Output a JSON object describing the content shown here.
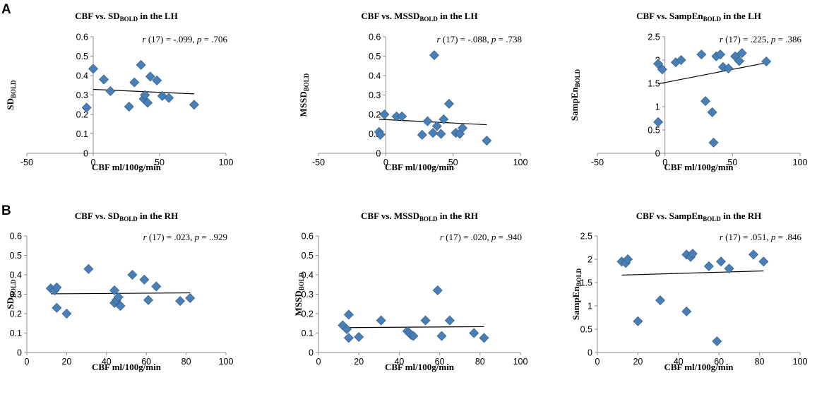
{
  "panel_labels": [
    "A",
    "B"
  ],
  "chart_data": [
    {
      "type": "scatter",
      "panel": "A",
      "row": 0,
      "col": 0,
      "title": {
        "pre": "CBF vs. SD",
        "sub": "BOLD",
        "post": " in the LH"
      },
      "xlabel": "CBF ml/100g/min",
      "ylabel": {
        "pre": "SD",
        "sub": "BOLD"
      },
      "xlim": [
        -50,
        100
      ],
      "xticks": [
        -50,
        0,
        50,
        100
      ],
      "ylim": [
        0,
        0.6
      ],
      "yticks": [
        0,
        0.1,
        0.2,
        0.3,
        0.4,
        0.5,
        0.6
      ],
      "ytick_labels": [
        "0",
        "0.1",
        "0.2",
        "0.3",
        "0.4",
        "0.5",
        "0.6"
      ],
      "stat": {
        "r": "r",
        "df": " (17) =  -.099, ",
        "p": "p",
        "val": " =  .706"
      },
      "points": [
        [
          -5,
          0.235
        ],
        [
          0,
          0.435
        ],
        [
          8,
          0.38
        ],
        [
          13,
          0.32
        ],
        [
          27,
          0.24
        ],
        [
          31,
          0.365
        ],
        [
          36,
          0.455
        ],
        [
          38,
          0.28
        ],
        [
          39,
          0.3
        ],
        [
          41,
          0.26
        ],
        [
          43,
          0.395
        ],
        [
          48,
          0.375
        ],
        [
          52,
          0.295
        ],
        [
          57,
          0.285
        ],
        [
          76,
          0.25
        ]
      ],
      "trend": [
        [
          0,
          0.329
        ],
        [
          76,
          0.306
        ]
      ]
    },
    {
      "type": "scatter",
      "panel": "A",
      "row": 0,
      "col": 1,
      "title": {
        "pre": "CBF vs. MSSD",
        "sub": "BOLD",
        "post": " in the LH"
      },
      "xlabel": "CBF ml/100g/min",
      "ylabel": {
        "pre": "MSSD",
        "sub": "BOLD"
      },
      "xlim": [
        -50,
        100
      ],
      "xticks": [
        -50,
        0,
        50,
        100
      ],
      "ylim": [
        0,
        0.6
      ],
      "yticks": [
        0,
        0.1,
        0.2,
        0.3,
        0.4,
        0.5,
        0.6
      ],
      "ytick_labels": [
        "0",
        "0.1",
        "0.2",
        "0.3",
        "0.4",
        "0.5",
        "0.6"
      ],
      "stat": {
        "r": "r",
        "df": " (17) =  -.088, ",
        "p": "p",
        "val": " =  .738"
      },
      "points": [
        [
          -5,
          0.11
        ],
        [
          -4,
          0.095
        ],
        [
          -1,
          0.2
        ],
        [
          8,
          0.19
        ],
        [
          12,
          0.19
        ],
        [
          27,
          0.095
        ],
        [
          31,
          0.165
        ],
        [
          35,
          0.105
        ],
        [
          36,
          0.505
        ],
        [
          38,
          0.14
        ],
        [
          41,
          0.1
        ],
        [
          43,
          0.175
        ],
        [
          47,
          0.255
        ],
        [
          52,
          0.105
        ],
        [
          55,
          0.1
        ],
        [
          57,
          0.13
        ],
        [
          75,
          0.065
        ]
      ],
      "trend": [
        [
          -5,
          0.175
        ],
        [
          75,
          0.147
        ]
      ]
    },
    {
      "type": "scatter",
      "panel": "A",
      "row": 0,
      "col": 2,
      "title": {
        "pre": "CBF vs. SampEn",
        "sub": "BOLD",
        "post": " in the LH"
      },
      "xlabel": "CBF ml/100g/min",
      "ylabel": {
        "pre": "SampEn",
        "sub": "BOLD"
      },
      "xlim": [
        -50,
        100
      ],
      "xticks": [
        -50,
        0,
        50,
        100
      ],
      "ylim": [
        0,
        2.5
      ],
      "yticks": [
        0,
        0.5,
        1,
        1.5,
        2,
        2.5
      ],
      "ytick_labels": [
        "0",
        "0.5",
        "1",
        "1.5",
        "2",
        "2.5"
      ],
      "stat": {
        "r": "r",
        "df": " (17) =  .225, ",
        "p": "p",
        "val": " =  .386"
      },
      "points": [
        [
          -5,
          1.92
        ],
        [
          -5,
          0.67
        ],
        [
          -2,
          1.8
        ],
        [
          8,
          1.95
        ],
        [
          12,
          2.0
        ],
        [
          27,
          2.12
        ],
        [
          30,
          1.12
        ],
        [
          35,
          0.88
        ],
        [
          36,
          0.23
        ],
        [
          38,
          2.08
        ],
        [
          41,
          2.12
        ],
        [
          43,
          1.85
        ],
        [
          47,
          1.82
        ],
        [
          52,
          2.08
        ],
        [
          55,
          1.98
        ],
        [
          57,
          2.15
        ],
        [
          75,
          1.97
        ]
      ],
      "trend": [
        [
          -5,
          1.49
        ],
        [
          75,
          1.94
        ]
      ]
    },
    {
      "type": "scatter",
      "panel": "B",
      "row": 1,
      "col": 0,
      "title": {
        "pre": "CBF vs. SD",
        "sub": "BOLD",
        "post": " in the RH"
      },
      "xlabel": "CBF ml/100g/min",
      "ylabel": {
        "pre": "SD",
        "sub": "BOLD"
      },
      "xlim": [
        0,
        100
      ],
      "xticks": [
        0,
        20,
        40,
        60,
        80,
        100
      ],
      "ylim": [
        0,
        0.6
      ],
      "yticks": [
        0,
        0.1,
        0.2,
        0.3,
        0.4,
        0.5,
        0.6
      ],
      "ytick_labels": [
        "0",
        "0.1",
        "0.2",
        "0.3",
        "0.4",
        "0.5",
        "0.6"
      ],
      "stat": {
        "r": "r",
        "df": " (17) =  .023, ",
        "p": "p",
        "val": " = ..929"
      },
      "points": [
        [
          12,
          0.33
        ],
        [
          14,
          0.32
        ],
        [
          15,
          0.335
        ],
        [
          15,
          0.23
        ],
        [
          20,
          0.2
        ],
        [
          31,
          0.43
        ],
        [
          44,
          0.255
        ],
        [
          44,
          0.32
        ],
        [
          45,
          0.27
        ],
        [
          46,
          0.285
        ],
        [
          47,
          0.24
        ],
        [
          53,
          0.4
        ],
        [
          59,
          0.375
        ],
        [
          61,
          0.27
        ],
        [
          65,
          0.34
        ],
        [
          77,
          0.265
        ],
        [
          82,
          0.28
        ]
      ],
      "trend": [
        [
          12,
          0.302
        ],
        [
          82,
          0.307
        ]
      ]
    },
    {
      "type": "scatter",
      "panel": "B",
      "row": 1,
      "col": 1,
      "title": {
        "pre": "CBF vs. MSSD",
        "sub": "BOLD",
        "post": " in the RH"
      },
      "xlabel": "CBF ml/100g/min",
      "ylabel": {
        "pre": "MSSD",
        "sub": "BOLD"
      },
      "xlim": [
        0,
        100
      ],
      "xticks": [
        0,
        20,
        40,
        60,
        80,
        100
      ],
      "ylim": [
        0,
        0.6
      ],
      "yticks": [
        0,
        0.1,
        0.2,
        0.3,
        0.4,
        0.5,
        0.6
      ],
      "ytick_labels": [
        "0",
        "0.1",
        "0.2",
        "0.3",
        "0.4",
        "0.5",
        "0.6"
      ],
      "stat": {
        "r": "r",
        "df": " (17) =  .020, ",
        "p": "p",
        "val": " =  .940"
      },
      "points": [
        [
          12,
          0.14
        ],
        [
          14,
          0.12
        ],
        [
          15,
          0.075
        ],
        [
          15,
          0.195
        ],
        [
          20,
          0.08
        ],
        [
          31,
          0.165
        ],
        [
          44,
          0.11
        ],
        [
          45,
          0.1
        ],
        [
          46,
          0.09
        ],
        [
          47,
          0.085
        ],
        [
          53,
          0.165
        ],
        [
          59,
          0.32
        ],
        [
          61,
          0.085
        ],
        [
          65,
          0.165
        ],
        [
          77,
          0.1
        ],
        [
          82,
          0.075
        ]
      ],
      "trend": [
        [
          12,
          0.128
        ],
        [
          82,
          0.133
        ]
      ]
    },
    {
      "type": "scatter",
      "panel": "B",
      "row": 1,
      "col": 2,
      "title": {
        "pre": "CBF vs. SampEn",
        "sub": "BOLD",
        "post": " in the RH"
      },
      "xlabel": "CBF ml/100g/min",
      "ylabel": {
        "pre": "SampEn",
        "sub": "BOLD"
      },
      "xlim": [
        0,
        100
      ],
      "xticks": [
        0,
        20,
        40,
        60,
        80,
        100
      ],
      "ylim": [
        0,
        2.5
      ],
      "yticks": [
        0,
        0.5,
        1,
        1.5,
        2,
        2.5
      ],
      "ytick_labels": [
        "0",
        "0.5",
        "1",
        "1.5",
        "2",
        "2.5"
      ],
      "stat": {
        "r": "r",
        "df": " (17) =  .051, ",
        "p": "p",
        "val": " =  .846"
      },
      "points": [
        [
          12,
          1.95
        ],
        [
          14,
          1.92
        ],
        [
          15,
          2.0
        ],
        [
          20,
          0.67
        ],
        [
          31,
          1.12
        ],
        [
          44,
          2.1
        ],
        [
          44,
          0.88
        ],
        [
          46,
          2.05
        ],
        [
          47,
          2.12
        ],
        [
          55,
          1.85
        ],
        [
          59,
          0.24
        ],
        [
          61,
          1.95
        ],
        [
          65,
          1.8
        ],
        [
          77,
          2.1
        ],
        [
          82,
          1.95
        ]
      ],
      "trend": [
        [
          12,
          1.66
        ],
        [
          82,
          1.75
        ]
      ]
    }
  ],
  "colors": {
    "marker": "#4a7fb5",
    "marker_edge": "#2f5f8f",
    "axis": "#8c8c8c",
    "trend": "#000000"
  }
}
